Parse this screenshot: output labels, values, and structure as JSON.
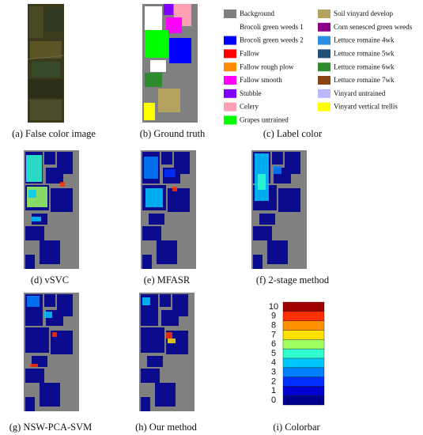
{
  "panels": [
    {
      "caption": "(a) False color image"
    },
    {
      "caption": "(b) Ground truth"
    },
    {
      "caption": "(c) Label color"
    },
    {
      "caption": "(d) vSVC"
    },
    {
      "caption": "(e) MFASR"
    },
    {
      "caption": "(f) 2-stage method"
    },
    {
      "caption": "(g) NSW-PCA-SVM"
    },
    {
      "caption": "(h) Our method"
    },
    {
      "caption": "(i) Colorbar"
    }
  ],
  "legend": {
    "items": [
      {
        "label": "Background",
        "color": "#808080"
      },
      {
        "label": "Brocoli green weeds 1",
        "color": "#ffffff"
      },
      {
        "label": "Brocoli green weeds 2",
        "color": "#0000ff"
      },
      {
        "label": "Fallow",
        "color": "#ff0000"
      },
      {
        "label": "Fallow rough plow",
        "color": "#ff8c00"
      },
      {
        "label": "Fallow smooth",
        "color": "#ff00ff"
      },
      {
        "label": "Stubble",
        "color": "#8000ff"
      },
      {
        "label": "Celery",
        "color": "#ff9fb4"
      },
      {
        "label": "Grapes untrained",
        "color": "#00ff00"
      },
      {
        "label": "Soil vinyard develop",
        "color": "#b3a35f"
      },
      {
        "label": "Corn senesced green weeds",
        "color": "#8b008b"
      },
      {
        "label": "Lettuce romaine 4wk",
        "color": "#2a8fe0"
      },
      {
        "label": "Lettuce romaine 5wk",
        "color": "#1f4e79"
      },
      {
        "label": "Lettuce romaine 6wk",
        "color": "#2e8b2e"
      },
      {
        "label": "Lettuce romaine 7wk",
        "color": "#8b4513"
      },
      {
        "label": "Vinyard untrained",
        "color": "#b8b8ff"
      },
      {
        "label": "Vinyard vertical trellis",
        "color": "#ffff00"
      }
    ]
  },
  "colorbar": {
    "ticks": [
      0,
      1,
      2,
      3,
      4,
      5,
      6,
      7,
      8,
      9,
      10
    ],
    "colors": [
      "#00008f",
      "#0000d0",
      "#0030ff",
      "#0080ff",
      "#00c8ff",
      "#30ffcf",
      "#9fff60",
      "#ffe000",
      "#ff9000",
      "#ff3000",
      "#a00000"
    ]
  }
}
